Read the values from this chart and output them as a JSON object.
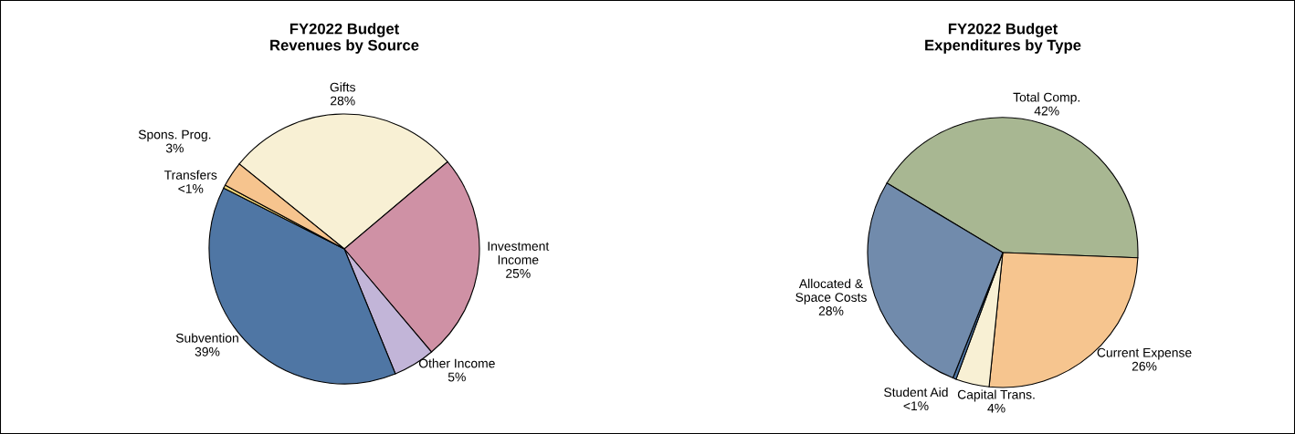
{
  "chart_data": [
    {
      "type": "pie",
      "title": "FY2022 Budget\nRevenues by Source",
      "categories": [
        "Gifts",
        "Investment\nIncome",
        "Other Income",
        "Subvention",
        "Transfers",
        "Spons. Prog."
      ],
      "values": [
        28,
        25,
        5,
        38.6,
        0.4,
        3
      ],
      "value_labels": [
        "28%",
        "25%",
        "5%",
        "39%",
        "<1%",
        "3%"
      ],
      "colors": [
        "#f8f0d4",
        "#cf91a5",
        "#c2b5d8",
        "#4f76a4",
        "#f2d77a",
        "#f6c48e"
      ]
    },
    {
      "type": "pie",
      "title": "FY2022 Budget\nExpenditures by Type",
      "categories": [
        "Total Comp.",
        "Current Expense",
        "Capital Trans.",
        "Student Aid",
        "Allocated &\nSpace Costs"
      ],
      "values": [
        42,
        26,
        4,
        0.4,
        27.6
      ],
      "value_labels": [
        "42%",
        "26%",
        "4%",
        "<1%",
        "28%"
      ],
      "colors": [
        "#a8b792",
        "#f6c58f",
        "#f8f0d4",
        "#4f76a4",
        "#718bac"
      ]
    }
  ]
}
